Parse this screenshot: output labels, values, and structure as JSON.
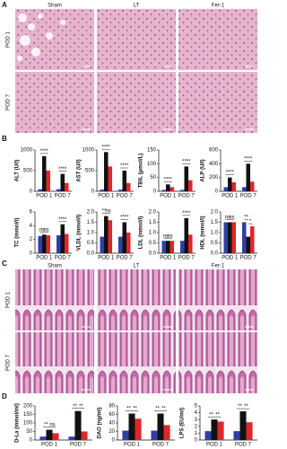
{
  "panel_labels": [
    "A",
    "B",
    "C",
    "D"
  ],
  "liver_images": {
    "columns": [
      "Sham",
      "LT",
      "Fer-1"
    ],
    "rows": [
      "POD 1",
      "POD 7"
    ]
  },
  "intestine_images": {
    "columns": [
      "Sham",
      "LT",
      "Fer-1"
    ],
    "rows": [
      "POD 1",
      "POD 7"
    ]
  },
  "chart_data": [
    {
      "type": "bar",
      "ylabel": "ALT (U/l)",
      "categories": [
        "POD 1",
        "POD 7"
      ],
      "ylim": [
        0,
        1000
      ],
      "yticks": [
        0,
        500,
        1000
      ],
      "series": [
        {
          "color": "#2f3fa8",
          "values": [
            50,
            50
          ]
        },
        {
          "color": "#111111",
          "values": [
            850,
            420
          ]
        },
        {
          "color": "#e0262b",
          "values": [
            500,
            200
          ]
        }
      ],
      "significance": [
        [
          "**",
          "**"
        ],
        [
          "**",
          "**"
        ]
      ]
    },
    {
      "type": "bar",
      "ylabel": "AST (U/l)",
      "categories": [
        "POD 1",
        "POD 7"
      ],
      "ylim": [
        0,
        1000
      ],
      "yticks": [
        0,
        500,
        1000
      ],
      "series": [
        {
          "color": "#2f3fa8",
          "values": [
            40,
            40
          ]
        },
        {
          "color": "#111111",
          "values": [
            950,
            500
          ]
        },
        {
          "color": "#e0262b",
          "values": [
            600,
            200
          ]
        }
      ],
      "significance": [
        [
          "**",
          "**"
        ],
        [
          "**",
          "**"
        ]
      ]
    },
    {
      "type": "bar",
      "ylabel": "TBIL (μmol/L)",
      "categories": [
        "POD 1",
        "POD 7"
      ],
      "ylim": [
        0,
        150
      ],
      "yticks": [
        0,
        50,
        100,
        150
      ],
      "series": [
        {
          "color": "#2f3fa8",
          "values": [
            5,
            5
          ]
        },
        {
          "color": "#111111",
          "values": [
            25,
            90
          ]
        },
        {
          "color": "#e0262b",
          "values": [
            15,
            40
          ]
        }
      ],
      "significance": [
        [
          "**",
          "**"
        ],
        [
          "**",
          "**"
        ]
      ]
    },
    {
      "type": "bar",
      "ylabel": "ALP (U/l)",
      "categories": [
        "POD 1",
        "POD 7"
      ],
      "ylim": [
        0,
        600
      ],
      "yticks": [
        0,
        200,
        400,
        600
      ],
      "series": [
        {
          "color": "#2f3fa8",
          "values": [
            60,
            60
          ]
        },
        {
          "color": "#111111",
          "values": [
            200,
            400
          ]
        },
        {
          "color": "#e0262b",
          "values": [
            130,
            140
          ]
        }
      ],
      "significance": [
        [
          "**",
          "**"
        ],
        [
          "**",
          "**"
        ]
      ]
    },
    {
      "type": "bar",
      "ylabel": "TC (mmol/l)",
      "categories": [
        "POD 1",
        "POD 7"
      ],
      "ylim": [
        0,
        6
      ],
      "yticks": [
        0,
        2,
        4,
        6
      ],
      "series": [
        {
          "color": "#2f3fa8",
          "values": [
            2.5,
            2.6
          ]
        },
        {
          "color": "#111111",
          "values": [
            2.7,
            4.2
          ]
        },
        {
          "color": "#e0262b",
          "values": [
            2.6,
            2.8
          ]
        }
      ],
      "significance": [
        [
          "ns",
          "ns"
        ],
        [
          "**",
          "**"
        ]
      ]
    },
    {
      "type": "bar",
      "ylabel": "VLDL (mmol/l)",
      "categories": [
        "POD 1",
        "POD 7"
      ],
      "ylim": [
        0,
        2
      ],
      "yticks": [
        {
          "value": 0,
          "label": "0.0"
        },
        0.5,
        {
          "value": 1,
          "label": "1.0"
        },
        1.5,
        {
          "value": 2,
          "label": "2.0"
        }
      ],
      "series": [
        {
          "color": "#2f3fa8",
          "values": [
            0.8,
            0.8
          ]
        },
        {
          "color": "#111111",
          "values": [
            1.8,
            1.5
          ]
        },
        {
          "color": "#e0262b",
          "values": [
            1.6,
            1.0
          ]
        }
      ],
      "significance": [
        [
          "**",
          "ns"
        ],
        [
          "**",
          "**"
        ]
      ]
    },
    {
      "type": "bar",
      "ylabel": "LDL (mmol/l)",
      "categories": [
        "POD 1",
        "POD 7"
      ],
      "ylim": [
        0,
        2
      ],
      "yticks": [
        {
          "value": 0,
          "label": "0.0"
        },
        0.5,
        {
          "value": 1,
          "label": "1.0"
        },
        1.5,
        {
          "value": 2,
          "label": "2.0"
        }
      ],
      "series": [
        {
          "color": "#2f3fa8",
          "values": [
            0.6,
            0.6
          ]
        },
        {
          "color": "#111111",
          "values": [
            0.6,
            1.7
          ]
        },
        {
          "color": "#e0262b",
          "values": [
            0.6,
            0.9
          ]
        }
      ],
      "significance": [
        [
          "ns",
          "ns"
        ],
        [
          "**",
          "**"
        ]
      ]
    },
    {
      "type": "bar",
      "ylabel": "HDL (mmol/l)",
      "categories": [
        "POD 1",
        "POD 7"
      ],
      "ylim": [
        0,
        2
      ],
      "yticks": [
        {
          "value": 0,
          "label": "0.0"
        },
        0.5,
        {
          "value": 1,
          "label": "1.0"
        },
        1.5,
        {
          "value": 2,
          "label": "2.0"
        }
      ],
      "series": [
        {
          "color": "#2f3fa8",
          "values": [
            1.5,
            1.5
          ]
        },
        {
          "color": "#111111",
          "values": [
            1.5,
            0.8
          ]
        },
        {
          "color": "#e0262b",
          "values": [
            1.5,
            1.3
          ]
        }
      ],
      "significance": [
        [
          "ns",
          "ns"
        ],
        [
          "**",
          "*"
        ]
      ]
    },
    {
      "type": "bar",
      "ylabel": "D-La (mmol/ml)",
      "categories": [
        "POD 1",
        "POD 7"
      ],
      "ylim": [
        0,
        200
      ],
      "yticks": [
        0,
        50,
        100,
        150,
        200
      ],
      "series": [
        {
          "color": "#2f3fa8",
          "values": [
            20,
            20
          ]
        },
        {
          "color": "#111111",
          "values": [
            60,
            170
          ]
        },
        {
          "color": "#e0262b",
          "values": [
            40,
            50
          ]
        }
      ],
      "significance": [
        [
          "**",
          "ns"
        ],
        [
          "**",
          "**"
        ]
      ]
    },
    {
      "type": "bar",
      "ylabel": "DAO (ng/ml)",
      "categories": [
        "POD 1",
        "POD 7"
      ],
      "ylim": [
        0,
        80
      ],
      "yticks": [
        0,
        20,
        40,
        60,
        80
      ],
      "series": [
        {
          "color": "#2f3fa8",
          "values": [
            22,
            22
          ]
        },
        {
          "color": "#111111",
          "values": [
            62,
            62
          ]
        },
        {
          "color": "#e0262b",
          "values": [
            50,
            35
          ]
        }
      ],
      "significance": [
        [
          "**",
          "**"
        ],
        [
          "**",
          "**"
        ]
      ]
    },
    {
      "type": "bar",
      "ylabel": "LPS (EU/ml)",
      "categories": [
        "POD 1",
        "POD 7"
      ],
      "ylim": [
        0,
        5
      ],
      "yticks": [
        0,
        1,
        2,
        3,
        4,
        5
      ],
      "series": [
        {
          "color": "#2f3fa8",
          "values": [
            1.3,
            1.3
          ]
        },
        {
          "color": "#111111",
          "values": [
            3.0,
            4.2
          ]
        },
        {
          "color": "#e0262b",
          "values": [
            2.7,
            2.6
          ]
        }
      ],
      "significance": [
        [
          "**",
          "**"
        ],
        [
          "**",
          "**"
        ]
      ]
    }
  ]
}
